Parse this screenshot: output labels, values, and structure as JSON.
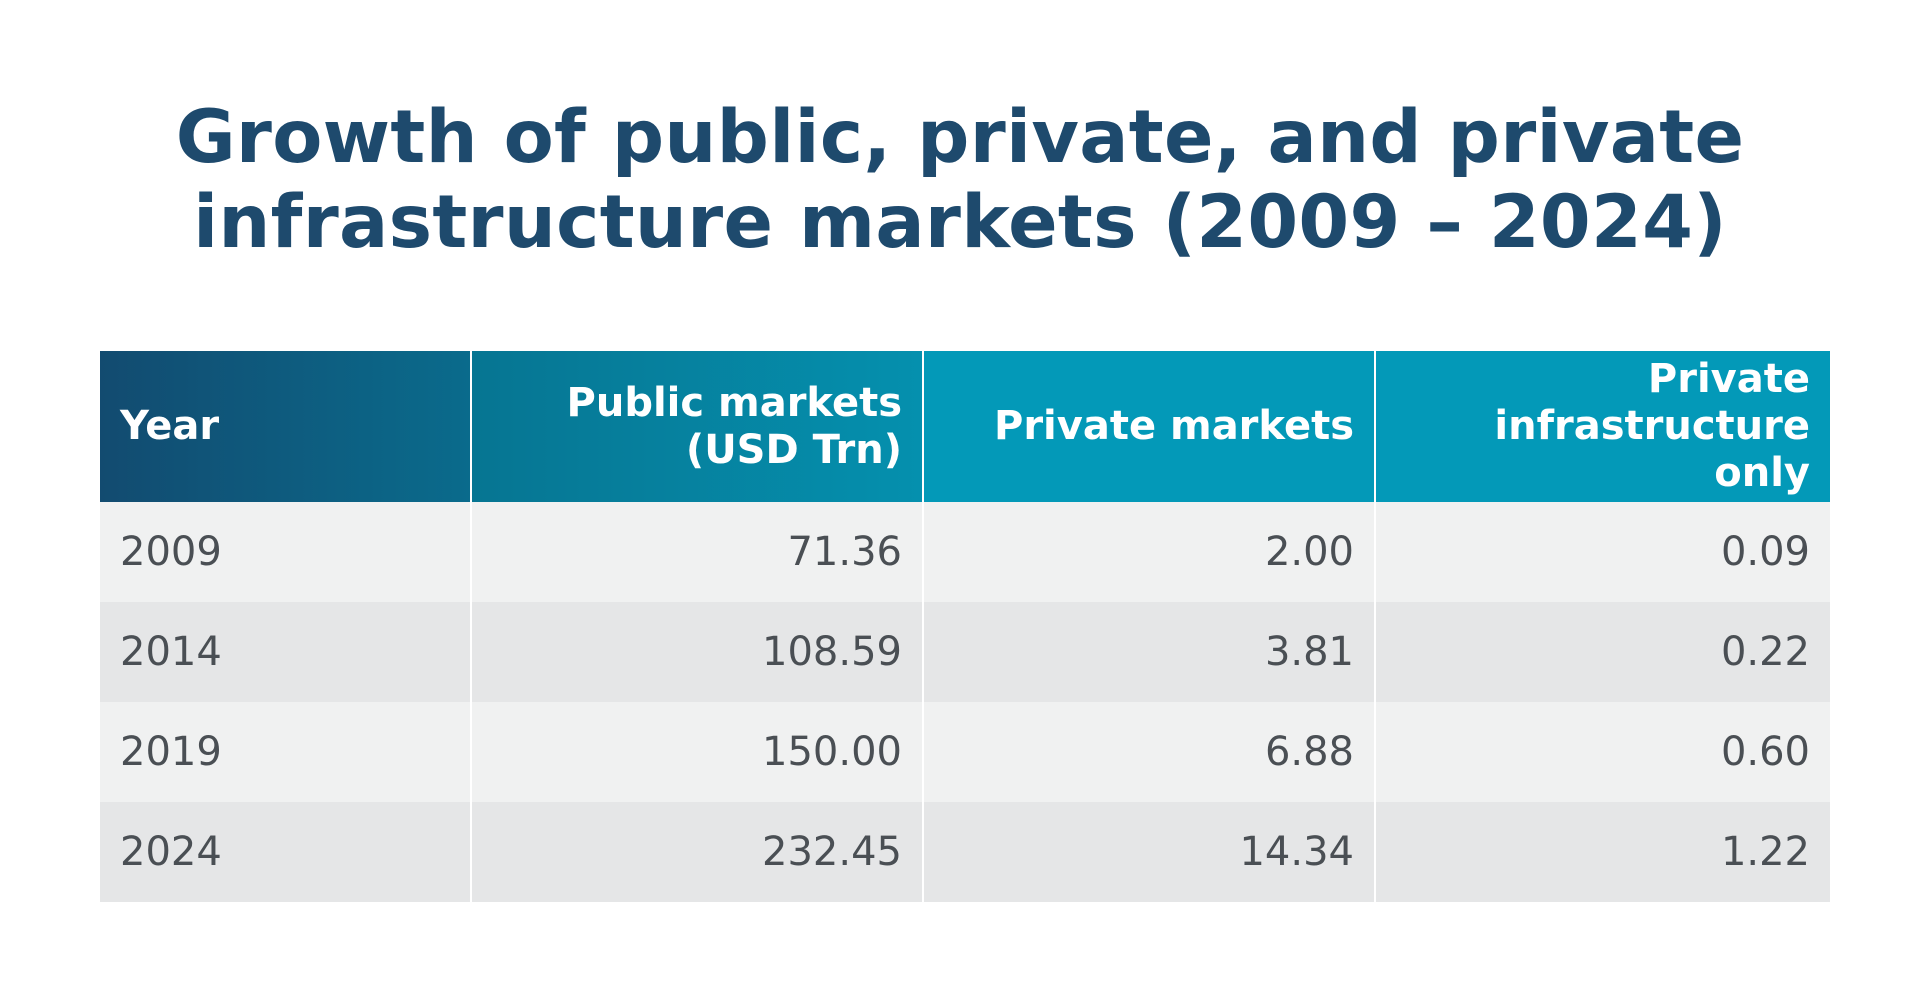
{
  "chart_data": {
    "type": "table",
    "title_lines": [
      "Growth of public, private, and private",
      "infrastructure markets (2009 – 2024)"
    ],
    "columns": [
      {
        "lines": [
          "Year"
        ]
      },
      {
        "lines": [
          "Public markets",
          "(USD Trn)"
        ]
      },
      {
        "lines": [
          "Private markets"
        ]
      },
      {
        "lines": [
          "Private",
          "infrastructure only"
        ]
      }
    ],
    "rows": [
      {
        "year": "2009",
        "public": "71.36",
        "private": "2.00",
        "infra": "0.09"
      },
      {
        "year": "2014",
        "public": "108.59",
        "private": "3.81",
        "infra": "0.22"
      },
      {
        "year": "2019",
        "public": "150.00",
        "private": "6.88",
        "infra": "0.60"
      },
      {
        "year": "2024",
        "public": "232.45",
        "private": "14.34",
        "infra": "1.22"
      }
    ]
  },
  "colors": {
    "title": "#1e4a6d",
    "header_dark": "#124b70",
    "header_teal": "#0399b8",
    "row_light": "#f0f1f1",
    "row_dark": "#e5e6e7",
    "cell_text": "#4a4f54"
  }
}
